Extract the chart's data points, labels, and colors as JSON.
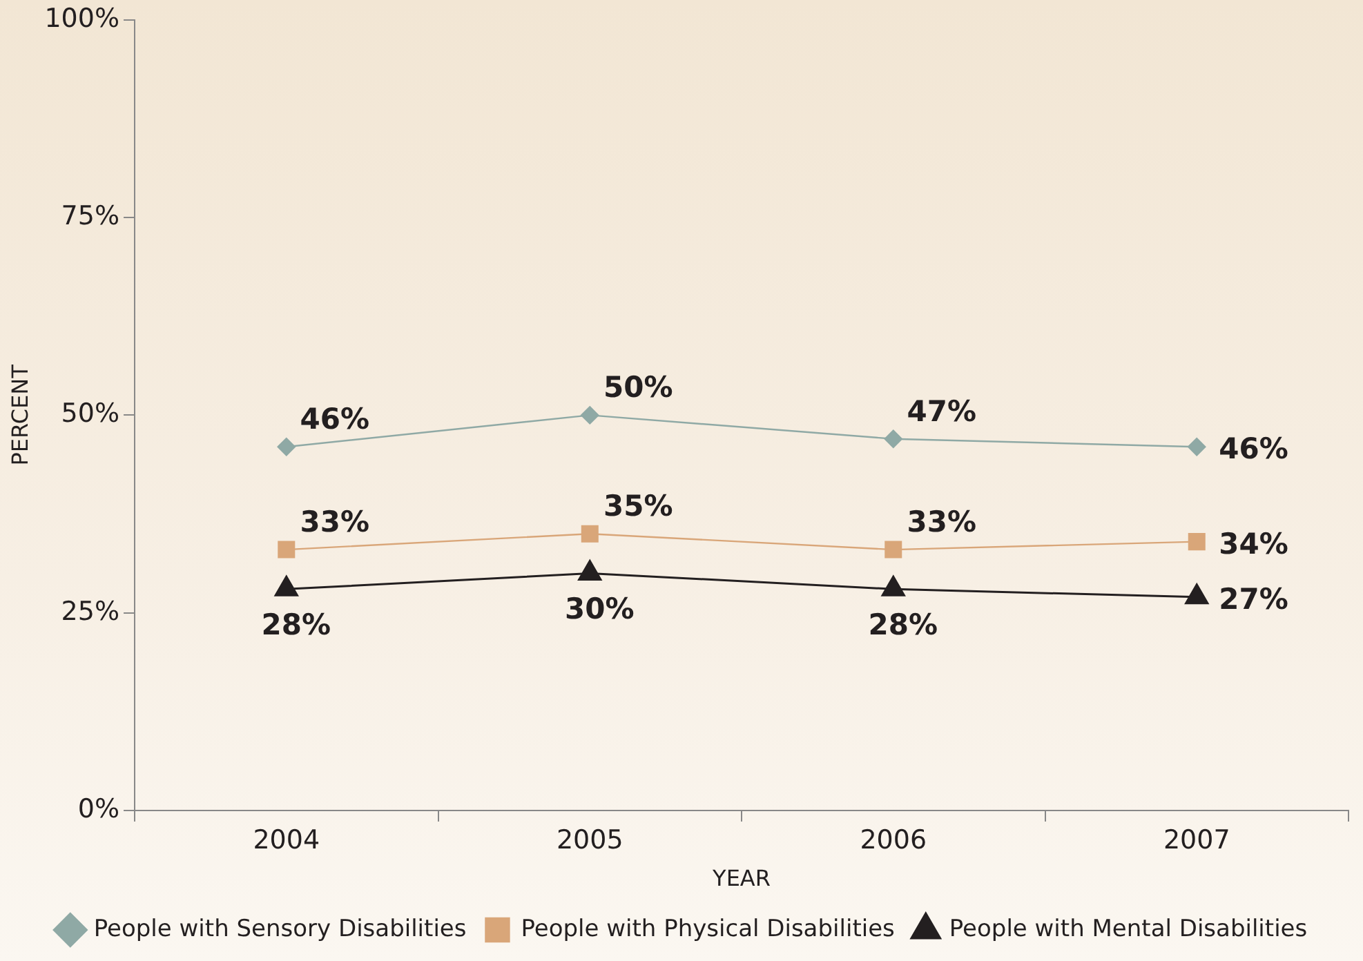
{
  "chart_data": {
    "type": "line",
    "xlabel": "YEAR",
    "ylabel": "PERCENT",
    "categories": [
      "2004",
      "2005",
      "2006",
      "2007"
    ],
    "series": [
      {
        "name": "People with Sensory Disabilities",
        "color": "#8fa9a5",
        "marker": "diamond",
        "values": [
          46,
          50,
          47,
          46
        ],
        "value_labels": [
          "46%",
          "50%",
          "47%",
          "46%"
        ]
      },
      {
        "name": "People with Physical Disabilities",
        "color": "#d9a679",
        "marker": "square",
        "values": [
          33,
          35,
          33,
          34
        ],
        "value_labels": [
          "33%",
          "35%",
          "33%",
          "34%"
        ]
      },
      {
        "name": "People with Mental Disabilities",
        "color": "#231f20",
        "marker": "triangle",
        "values": [
          28,
          30,
          28,
          27
        ],
        "value_labels": [
          "28%",
          "30%",
          "28%",
          "27%"
        ]
      }
    ],
    "ylim": [
      0,
      100
    ],
    "yticks": [
      {
        "value": 0,
        "label": "0%"
      },
      {
        "value": 25,
        "label": "25%"
      },
      {
        "value": 50,
        "label": "50%"
      },
      {
        "value": 75,
        "label": "75%"
      },
      {
        "value": 100,
        "label": "100%"
      }
    ],
    "grid": false,
    "legend": "bottom",
    "line_style": "solid"
  }
}
